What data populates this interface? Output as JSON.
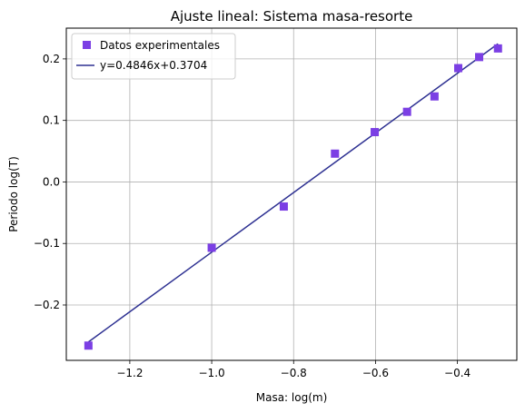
{
  "chart_data": {
    "type": "scatter",
    "title": "Ajuste lineal: Sistema masa-resorte",
    "xlabel": "Masa: log(m)",
    "ylabel": "Periodo log(T)",
    "xlim": [
      -1.355,
      -0.255
    ],
    "ylim": [
      -0.29,
      0.25
    ],
    "grid": true,
    "legend_position": "top-left",
    "x_ticks": [
      -1.2,
      -1.0,
      -0.8,
      -0.6,
      -0.4
    ],
    "x_tick_labels": [
      "−1.2",
      "−1.0",
      "−0.8",
      "−0.6",
      "−0.4"
    ],
    "y_ticks": [
      -0.2,
      -0.1,
      0.0,
      0.1,
      0.2
    ],
    "y_tick_labels": [
      "−0.2",
      "−0.1",
      "0.0",
      "0.1",
      "0.2"
    ],
    "series": [
      {
        "name": "Datos experimentales",
        "kind": "scatter",
        "marker": "square",
        "color": "#7b3fe4",
        "x": [
          -1.301,
          -1.0,
          -0.824,
          -0.699,
          -0.602,
          -0.523,
          -0.456,
          -0.398,
          -0.347,
          -0.301
        ],
        "y": [
          -0.266,
          -0.107,
          -0.04,
          0.046,
          0.081,
          0.114,
          0.139,
          0.185,
          0.203,
          0.217
        ]
      },
      {
        "name": "y=0.4846x+0.3704",
        "kind": "line",
        "color": "#2e3192",
        "slope": 0.4846,
        "intercept": 0.3704,
        "x_range": [
          -1.301,
          -0.301
        ]
      }
    ]
  }
}
